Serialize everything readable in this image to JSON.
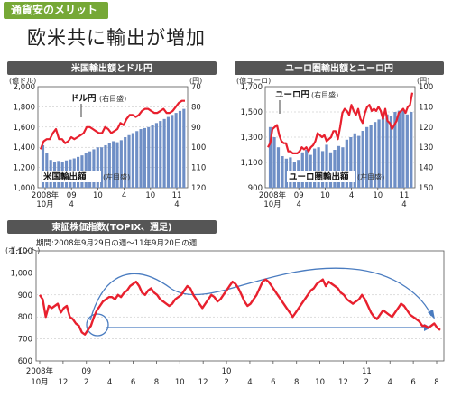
{
  "header": {
    "tag": "通貨安のメリット",
    "headline": "欧米共に輸出が増加"
  },
  "colors": {
    "bar": "#6f8fc6",
    "line": "#e8202e",
    "arrow": "#4a7cc0",
    "panel_title_bg": "#555555",
    "tag_bg": "#76a836"
  },
  "chart_data": [
    {
      "type": "bar+line",
      "title": "米国輸出額とドル円",
      "x_tick_labels": [
        "2008年\n10月",
        "09\n4",
        "10",
        "4",
        "10",
        "11\n4"
      ],
      "left_axis": {
        "unit": "(億ドル)",
        "ticks": [
          "2,000",
          "1,800",
          "1,600",
          "1,400",
          "1,200",
          "1,000"
        ],
        "ylim": [
          1000,
          2000
        ]
      },
      "right_axis": {
        "unit": "(円)",
        "ticks": [
          "70",
          "80",
          "90",
          "100",
          "110",
          "120"
        ],
        "ylim": [
          70,
          120
        ],
        "reversed": true
      },
      "series": [
        {
          "name": "米国輸出額",
          "axis": "left",
          "type": "bar",
          "label": "米国輸出額",
          "label_note": "(左目盛)",
          "values": [
            1420,
            1340,
            1275,
            1255,
            1265,
            1250,
            1270,
            1280,
            1290,
            1305,
            1320,
            1340,
            1360,
            1380,
            1400,
            1400,
            1420,
            1440,
            1460,
            1450,
            1470,
            1500,
            1520,
            1540,
            1560,
            1580,
            1590,
            1600,
            1620,
            1640,
            1660,
            1680,
            1700,
            1720,
            1740,
            1760,
            1780
          ]
        },
        {
          "name": "ドル円",
          "axis": "right",
          "type": "line",
          "label": "ドル円",
          "label_note": "(右目盛)",
          "values": [
            101,
            97,
            96,
            96,
            93,
            91,
            96,
            96,
            98,
            97,
            95,
            96,
            95,
            94,
            93,
            90,
            90,
            91,
            92,
            93,
            93,
            90,
            91,
            93,
            92,
            91,
            88,
            89,
            86,
            84,
            84,
            85,
            84,
            82,
            81,
            81,
            82,
            83,
            83,
            82,
            81,
            83,
            83,
            82,
            80,
            78,
            77,
            77
          ]
        }
      ]
    },
    {
      "type": "bar+line",
      "title": "ユーロ圏輸出額とユーロ円",
      "x_tick_labels": [
        "2008年\n10月",
        "09\n4",
        "10",
        "4",
        "10",
        "11\n4"
      ],
      "left_axis": {
        "unit": "(億ユーロ)",
        "ticks": [
          "1,700",
          "1,500",
          "1,300",
          "1,100",
          "900"
        ],
        "ylim": [
          900,
          1700
        ]
      },
      "right_axis": {
        "unit": "(円)",
        "ticks": [
          "100",
          "110",
          "120",
          "130",
          "140",
          "150"
        ],
        "ylim": [
          100,
          150
        ],
        "reversed": true
      },
      "series": [
        {
          "name": "ユーロ圏輸出額",
          "axis": "left",
          "type": "bar",
          "label": "ユーロ圏輸出額",
          "label_note": "(左目盛)",
          "values": [
            1380,
            1300,
            1220,
            1150,
            1130,
            1140,
            1100,
            1120,
            1180,
            1200,
            1160,
            1210,
            1220,
            1190,
            1240,
            1180,
            1200,
            1230,
            1220,
            1280,
            1300,
            1330,
            1310,
            1350,
            1380,
            1400,
            1420,
            1440,
            1450,
            1480,
            1470,
            1500,
            1510,
            1520,
            1480,
            1500
          ]
        },
        {
          "name": "ユーロ円",
          "axis": "right",
          "type": "line",
          "label": "ユーロ円",
          "label_note": "(右目盛)",
          "values": [
            130,
            128,
            121,
            120,
            119,
            124,
            127,
            128,
            128,
            132,
            132,
            133,
            133,
            133,
            132,
            130,
            131,
            130,
            132,
            130,
            129,
            127,
            123,
            124,
            125,
            124,
            127,
            126,
            125,
            122,
            122,
            126,
            120,
            113,
            111,
            112,
            114,
            109,
            112,
            114,
            111,
            116,
            118,
            113,
            110,
            109,
            112,
            111,
            112,
            110,
            112,
            116,
            111,
            117,
            118,
            121,
            119,
            117,
            113,
            112,
            111,
            113,
            110,
            109,
            103
          ]
        }
      ]
    },
    {
      "type": "line",
      "title": "東証株価指数(TOPIX、週足)",
      "subtitle": "期間:2008年9月29日の週〜11年9月20日の週",
      "y_unit": "(ポイント)",
      "y_ticks": [
        "1,100",
        "1,000",
        "900",
        "800",
        "700",
        "600"
      ],
      "ylim": [
        600,
        1100
      ],
      "x_tick_labels": [
        "2008年\n10月",
        "12",
        "09\n2",
        "4",
        "6",
        "8",
        "10",
        "12",
        "10\n2",
        "4",
        "6",
        "8",
        "10",
        "12",
        "11\n2",
        "4",
        "6",
        "8"
      ],
      "series": [
        {
          "name": "TOPIX",
          "values": [
            900,
            880,
            800,
            850,
            840,
            850,
            860,
            820,
            840,
            850,
            800,
            790,
            770,
            760,
            730,
            720,
            740,
            760,
            800,
            830,
            850,
            870,
            880,
            890,
            890,
            880,
            900,
            890,
            910,
            920,
            940,
            950,
            960,
            940,
            910,
            900,
            920,
            930,
            910,
            900,
            880,
            870,
            860,
            850,
            860,
            880,
            890,
            900,
            920,
            940,
            930,
            900,
            880,
            860,
            840,
            860,
            880,
            900,
            890,
            870,
            880,
            900,
            920,
            940,
            960,
            950,
            930,
            900,
            870,
            850,
            860,
            880,
            900,
            930,
            960,
            970,
            960,
            940,
            920,
            900,
            880,
            860,
            840,
            820,
            800,
            820,
            840,
            860,
            880,
            900,
            920,
            930,
            950,
            960,
            970,
            940,
            960,
            950,
            940,
            930,
            910,
            900,
            880,
            870,
            860,
            870,
            880,
            900,
            880,
            850,
            820,
            800,
            790,
            810,
            830,
            820,
            810,
            800,
            820,
            840,
            860,
            850,
            830,
            810,
            800,
            790,
            780,
            760,
            760,
            750,
            760,
            770,
            750,
            740
          ]
        }
      ]
    }
  ]
}
